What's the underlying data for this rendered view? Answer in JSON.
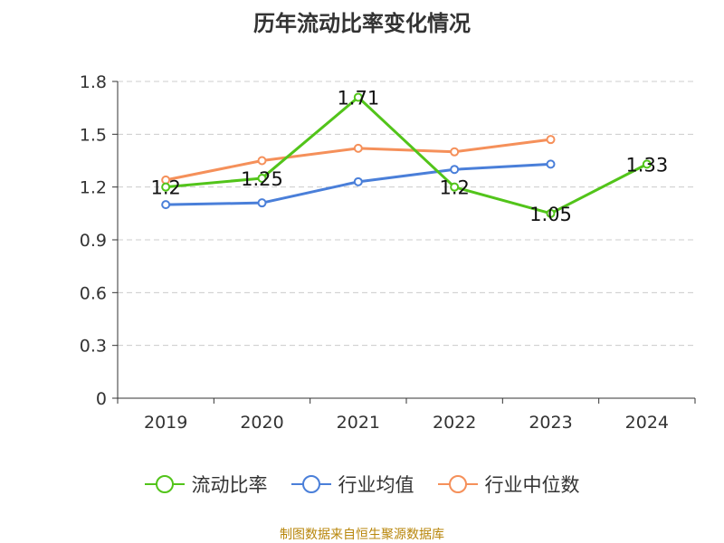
{
  "title": "历年流动比率变化情况",
  "footer": "制图数据来自恒生聚源数据库",
  "chart_data": {
    "type": "line",
    "title": "历年流动比率变化情况",
    "categories": [
      "2019",
      "2020",
      "2021",
      "2022",
      "2023",
      "2024"
    ],
    "ylim": [
      0,
      1.8
    ],
    "yticks": [
      "0",
      "0.3",
      "0.6",
      "0.9",
      "1.2",
      "1.5",
      "1.8"
    ],
    "grid": true,
    "legend_position": "bottom",
    "series": [
      {
        "name": "流动比率",
        "color": "#52c41a",
        "values": [
          1.2,
          1.25,
          1.71,
          1.2,
          1.05,
          1.33
        ],
        "labels": [
          "1.2",
          "1.25",
          "1.71",
          "1.2",
          "1.05",
          "1.33"
        ]
      },
      {
        "name": "行业均值",
        "color": "#4a7fd9",
        "values": [
          1.1,
          1.11,
          1.23,
          1.3,
          1.33,
          null
        ]
      },
      {
        "name": "行业中位数",
        "color": "#f5905a",
        "values": [
          1.24,
          1.35,
          1.42,
          1.4,
          1.47,
          null
        ]
      }
    ]
  }
}
